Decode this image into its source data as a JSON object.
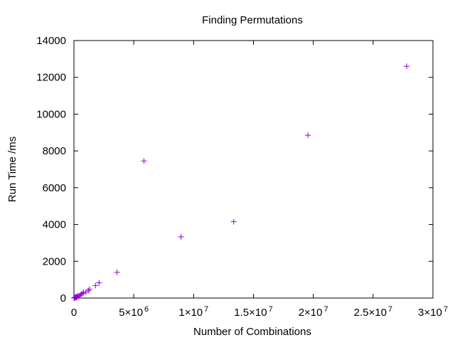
{
  "chart_data": {
    "type": "scatter",
    "title": "Finding Permutations",
    "xlabel": "Number of Combinations",
    "ylabel": "Run Time /ms",
    "xlim": [
      0,
      30000000
    ],
    "ylim": [
      0,
      14000
    ],
    "grid": false,
    "legend": "none",
    "marker": "+",
    "marker_color": "#9400D3",
    "x_ticks": [
      {
        "value": 0,
        "mantissa": "0",
        "exponent": ""
      },
      {
        "value": 5000000,
        "mantissa": "5×10",
        "exponent": "6"
      },
      {
        "value": 10000000,
        "mantissa": "1×10",
        "exponent": "7"
      },
      {
        "value": 15000000,
        "mantissa": "1.5×10",
        "exponent": "7"
      },
      {
        "value": 20000000,
        "mantissa": "2×10",
        "exponent": "7"
      },
      {
        "value": 25000000,
        "mantissa": "2.5×10",
        "exponent": "7"
      },
      {
        "value": 30000000,
        "mantissa": "3×10",
        "exponent": "7"
      }
    ],
    "y_ticks": [
      {
        "value": 0,
        "label": "0"
      },
      {
        "value": 2000,
        "label": "2000"
      },
      {
        "value": 4000,
        "label": "4000"
      },
      {
        "value": 6000,
        "label": "6000"
      },
      {
        "value": 8000,
        "label": "8000"
      },
      {
        "value": 10000,
        "label": "10000"
      },
      {
        "value": 12000,
        "label": "12000"
      },
      {
        "value": 14000,
        "label": "14000"
      }
    ],
    "series": [
      {
        "points": [
          {
            "x": 10000,
            "y": 0
          },
          {
            "x": 40000,
            "y": 10
          },
          {
            "x": 80000,
            "y": 20
          },
          {
            "x": 120000,
            "y": 40
          },
          {
            "x": 160000,
            "y": 60
          },
          {
            "x": 200000,
            "y": 30
          },
          {
            "x": 250000,
            "y": 80
          },
          {
            "x": 300000,
            "y": 100
          },
          {
            "x": 400000,
            "y": 110
          },
          {
            "x": 500000,
            "y": 150
          },
          {
            "x": 600000,
            "y": 200
          },
          {
            "x": 700000,
            "y": 250
          },
          {
            "x": 800000,
            "y": 300
          },
          {
            "x": 1000000,
            "y": 320
          },
          {
            "x": 1200000,
            "y": 400
          },
          {
            "x": 1300000,
            "y": 480
          },
          {
            "x": 1800000,
            "y": 680
          },
          {
            "x": 2100000,
            "y": 830
          },
          {
            "x": 3600000,
            "y": 1400
          },
          {
            "x": 5850000,
            "y": 7450
          },
          {
            "x": 8950000,
            "y": 3330
          },
          {
            "x": 13350000,
            "y": 4150
          },
          {
            "x": 19550000,
            "y": 8850
          },
          {
            "x": 27800000,
            "y": 12600
          }
        ]
      }
    ]
  }
}
